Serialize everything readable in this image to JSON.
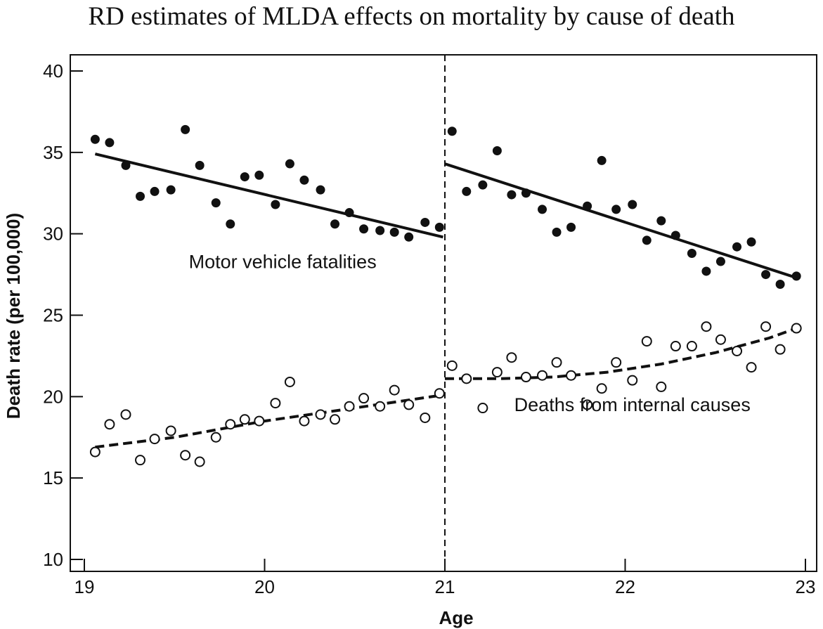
{
  "chart_data": {
    "type": "scatter",
    "title": "RD estimates of MLDA effects on mortality by cause of death",
    "xlabel": "Age",
    "ylabel": "Death rate (per 100,000)",
    "xlim": [
      19,
      23
    ],
    "ylim": [
      10,
      40
    ],
    "xticks": [
      "19",
      "20",
      "21",
      "22",
      "23"
    ],
    "yticks": [
      "10",
      "15",
      "20",
      "25",
      "30",
      "35",
      "40"
    ],
    "cutoff": 21,
    "grid": false,
    "series": [
      {
        "name": "Motor vehicle fatalities",
        "marker": "filled",
        "x": [
          19.06,
          19.14,
          19.23,
          19.31,
          19.39,
          19.48,
          19.56,
          19.64,
          19.73,
          19.81,
          19.89,
          19.97,
          20.06,
          20.14,
          20.22,
          20.31,
          20.39,
          20.47,
          20.55,
          20.64,
          20.72,
          20.8,
          20.89,
          20.97,
          21.04,
          21.12,
          21.21,
          21.29,
          21.37,
          21.45,
          21.54,
          21.62,
          21.7,
          21.79,
          21.87,
          21.95,
          22.04,
          22.12,
          22.2,
          22.28,
          22.37,
          22.45,
          22.53,
          22.62,
          22.7,
          22.78,
          22.86,
          22.95
        ],
        "y": [
          35.8,
          35.6,
          34.2,
          32.3,
          32.6,
          32.7,
          36.4,
          34.2,
          31.9,
          30.6,
          33.5,
          33.6,
          31.8,
          34.3,
          33.3,
          32.7,
          30.6,
          31.3,
          30.3,
          30.2,
          30.1,
          29.8,
          30.7,
          30.4,
          36.3,
          32.6,
          33.0,
          35.1,
          32.4,
          32.5,
          31.5,
          30.1,
          30.4,
          31.7,
          34.5,
          31.5,
          31.8,
          29.6,
          30.8,
          29.9,
          28.8,
          27.7,
          28.3,
          29.2,
          29.5,
          27.5,
          26.9,
          27.4
        ]
      },
      {
        "name": "Deaths from internal causes",
        "marker": "open",
        "x": [
          19.06,
          19.14,
          19.23,
          19.31,
          19.39,
          19.48,
          19.56,
          19.64,
          19.73,
          19.81,
          19.89,
          19.97,
          20.06,
          20.14,
          20.22,
          20.31,
          20.39,
          20.47,
          20.55,
          20.64,
          20.72,
          20.8,
          20.89,
          20.97,
          21.04,
          21.12,
          21.21,
          21.29,
          21.37,
          21.45,
          21.54,
          21.62,
          21.7,
          21.79,
          21.87,
          21.95,
          22.04,
          22.12,
          22.2,
          22.28,
          22.37,
          22.45,
          22.53,
          22.62,
          22.7,
          22.78,
          22.86,
          22.95
        ],
        "y": [
          16.6,
          18.3,
          18.9,
          16.1,
          17.4,
          17.9,
          16.4,
          16.0,
          17.5,
          18.3,
          18.6,
          18.5,
          19.6,
          20.9,
          18.5,
          18.9,
          18.6,
          19.4,
          19.9,
          19.4,
          20.4,
          19.5,
          18.7,
          20.2,
          21.9,
          21.1,
          19.3,
          21.5,
          22.4,
          21.2,
          21.3,
          22.1,
          21.3,
          19.5,
          20.5,
          22.1,
          21.0,
          23.4,
          20.6,
          23.1,
          23.1,
          24.3,
          23.5,
          22.8,
          21.8,
          24.3,
          22.9,
          24.2
        ]
      }
    ],
    "fits": [
      {
        "series": "Motor vehicle fatalities",
        "style": "solid",
        "segments": [
          {
            "x": [
              19.06,
              20.99
            ],
            "y": [
              34.9,
              29.8
            ]
          },
          {
            "x": [
              21.0,
              22.95
            ],
            "y": [
              34.3,
              27.3
            ]
          }
        ]
      },
      {
        "series": "Deaths from internal causes",
        "style": "dashed",
        "segments": [
          {
            "x": [
              19.06,
              19.5,
              20.0,
              20.5,
              20.99
            ],
            "y": [
              16.9,
              17.5,
              18.5,
              19.3,
              20.1
            ]
          },
          {
            "x": [
              21.0,
              21.3,
              21.6,
              21.9,
              22.2,
              22.5,
              22.8,
              22.95
            ],
            "y": [
              21.1,
              21.1,
              21.2,
              21.5,
              22.0,
              22.7,
              23.6,
              24.2
            ]
          }
        ]
      }
    ],
    "annotations": [
      {
        "text": "Motor vehicle fatalities",
        "x": 20.1,
        "y": 27.9
      },
      {
        "text": "Deaths from internal causes",
        "x": 22.04,
        "y": 19.1
      }
    ]
  }
}
